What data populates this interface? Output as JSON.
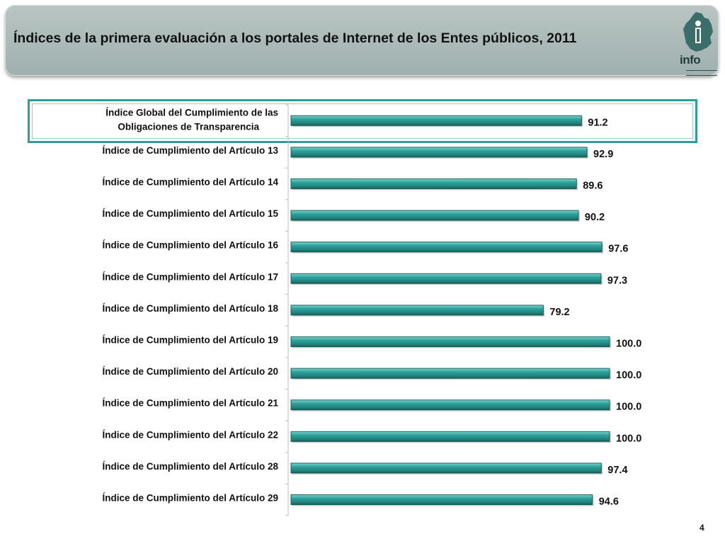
{
  "header": {
    "title": "Índices de la primera evaluación a los portales de Internet de los Entes públicos, 2011",
    "logo_text": "info",
    "logo_icon": "map-person-icon"
  },
  "colors": {
    "bar_fill": "#2a9d96",
    "bar_dark": "#1c6e69",
    "header_bg": "#a9b8b6",
    "highlight_border": "#2f9e97"
  },
  "page_number": "4",
  "chart_data": {
    "type": "bar",
    "orientation": "horizontal",
    "title": "",
    "xlabel": "",
    "ylabel": "",
    "xlim": [
      0,
      100
    ],
    "grid": false,
    "categories": [
      [
        "Índice Global del Cumplimiento de las",
        "Obligaciones de Transparencia"
      ],
      [
        "Índice de Cumplimiento del Artículo 13"
      ],
      [
        "Índice de Cumplimiento del Artículo 14"
      ],
      [
        "Índice de Cumplimiento del Artículo 15"
      ],
      [
        "Índice de Cumplimiento del Artículo 16"
      ],
      [
        "Índice de Cumplimiento del Artículo 17"
      ],
      [
        "Índice de Cumplimiento del Artículo 18"
      ],
      [
        "Índice de Cumplimiento del Artículo 19"
      ],
      [
        "Índice de Cumplimiento del Artículo 20"
      ],
      [
        "Índice de Cumplimiento del Artículo 21"
      ],
      [
        "Índice de Cumplimiento del Artículo 22"
      ],
      [
        "Índice de Cumplimiento del Artículo 28"
      ],
      [
        "Índice de Cumplimiento del Artículo 29"
      ]
    ],
    "values": [
      91.2,
      92.9,
      89.6,
      90.2,
      97.6,
      97.3,
      79.2,
      100.0,
      100.0,
      100.0,
      100.0,
      97.4,
      94.6
    ],
    "value_labels": [
      "91.2",
      "92.9",
      "89.6",
      "90.2",
      "97.6",
      "97.3",
      "79.2",
      "100.0",
      "100.0",
      "100.0",
      "100.0",
      "97.4",
      "94.6"
    ],
    "highlighted_category_index": 0
  }
}
